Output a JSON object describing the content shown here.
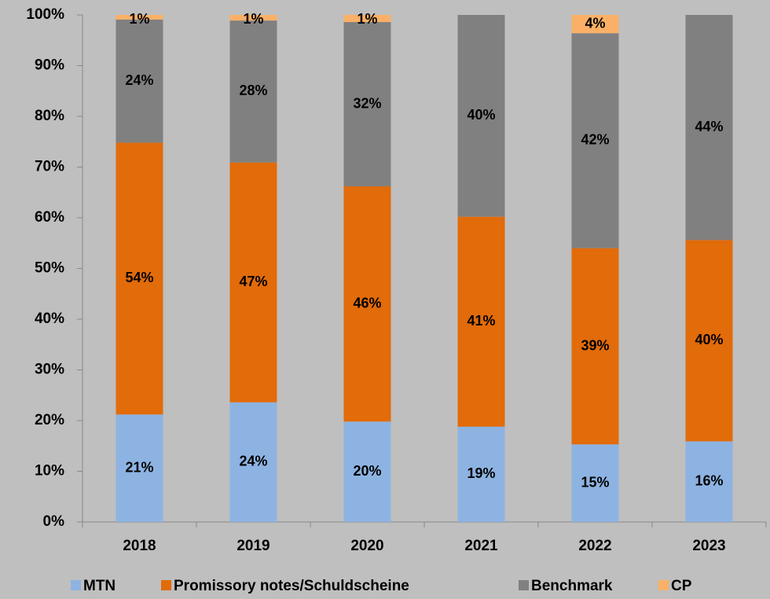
{
  "chart_data": {
    "type": "stacked_bar",
    "categories": [
      "2018",
      "2019",
      "2020",
      "2021",
      "2022",
      "2023"
    ],
    "series": [
      {
        "name": "MTN",
        "color": "#8db3e2",
        "values": [
          21.2,
          23.6,
          19.8,
          18.8,
          15.3,
          15.9
        ],
        "value_labels": [
          "21%",
          "24%",
          "20%",
          "19%",
          "15%",
          "16%"
        ]
      },
      {
        "name": "Promissory notes/Schuldscheine",
        "color": "#e26b0a",
        "values": [
          53.6,
          47.3,
          46.4,
          41.4,
          38.7,
          39.7
        ],
        "value_labels": [
          "54%",
          "47%",
          "46%",
          "41%",
          "39%",
          "40%"
        ]
      },
      {
        "name": "Benchmark",
        "color": "#808080",
        "values": [
          24.3,
          28.0,
          32.4,
          39.8,
          42.4,
          44.4
        ],
        "value_labels": [
          "24%",
          "28%",
          "32%",
          "40%",
          "42%",
          "44%"
        ]
      },
      {
        "name": "CP",
        "color": "#fab066",
        "values": [
          0.9,
          1.1,
          1.4,
          null,
          3.6,
          null
        ],
        "value_labels": [
          "1%",
          "1%",
          "1%",
          null,
          "4%",
          null
        ]
      }
    ],
    "ylim": [
      0,
      100
    ],
    "yticks": [
      {
        "value": 0,
        "label": "0%"
      },
      {
        "value": 10,
        "label": "10%"
      },
      {
        "value": 20,
        "label": "20%"
      },
      {
        "value": 30,
        "label": "30%"
      },
      {
        "value": 40,
        "label": "40%"
      },
      {
        "value": 50,
        "label": "50%"
      },
      {
        "value": 60,
        "label": "60%"
      },
      {
        "value": 70,
        "label": "70%"
      },
      {
        "value": 80,
        "label": "80%"
      },
      {
        "value": 90,
        "label": "90%"
      },
      {
        "value": 100,
        "label": "100%"
      }
    ],
    "legend": "bottom"
  }
}
